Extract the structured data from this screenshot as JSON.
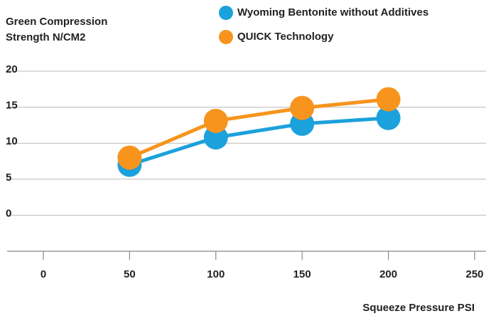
{
  "chart_data": {
    "type": "line",
    "ylabel": "Green Compression Strength N/CM2",
    "xlabel": "Squeeze Pressure PSI",
    "x": [
      50,
      100,
      150,
      200
    ],
    "series": [
      {
        "name": "Wyoming Bentonite without Additives",
        "color": "#1ba1dc",
        "values": [
          7.0,
          10.8,
          12.7,
          13.5
        ]
      },
      {
        "name": "QUICK Technology",
        "color": "#f7941d",
        "values": [
          8.0,
          13.1,
          14.9,
          16.1
        ]
      }
    ],
    "xlim": [
      0,
      250
    ],
    "xticks": [
      0,
      50,
      100,
      150,
      200,
      250
    ],
    "ylim": [
      -5,
      20
    ],
    "yticks": [
      0,
      5,
      10,
      15,
      20
    ],
    "grid": true
  }
}
